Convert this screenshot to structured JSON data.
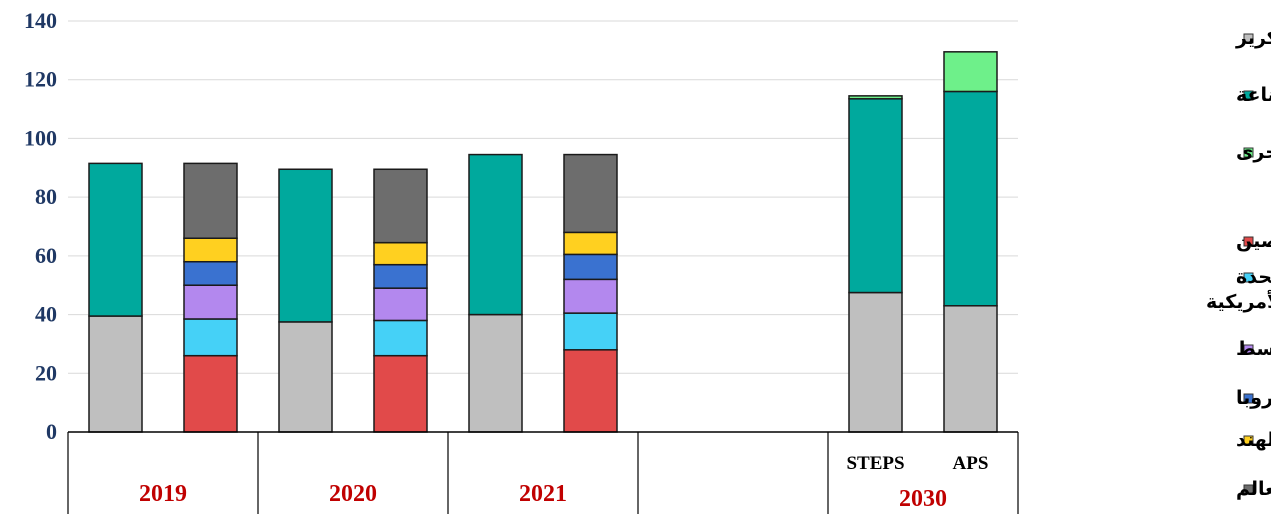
{
  "chart_data": {
    "type": "bar",
    "stacked": true,
    "ylim": [
      0,
      140
    ],
    "yticks": [
      0,
      20,
      40,
      60,
      80,
      100,
      120,
      140
    ],
    "grid": true,
    "legend_position": "right",
    "groups": [
      {
        "label": "2019",
        "bars": [
          {
            "sub_label": "",
            "segments": [
              {
                "series": "refining",
                "value": 39.5
              },
              {
                "series": "industry",
                "value": 52.0
              }
            ]
          },
          {
            "sub_label": "",
            "segments": [
              {
                "series": "china",
                "value": 26.0
              },
              {
                "series": "usa",
                "value": 12.5
              },
              {
                "series": "middle_east",
                "value": 11.5
              },
              {
                "series": "europe",
                "value": 8.0
              },
              {
                "series": "india",
                "value": 8.0
              },
              {
                "series": "rest_world",
                "value": 25.5
              }
            ]
          }
        ]
      },
      {
        "label": "2020",
        "bars": [
          {
            "sub_label": "",
            "segments": [
              {
                "series": "refining",
                "value": 37.5
              },
              {
                "series": "industry",
                "value": 52.0
              }
            ]
          },
          {
            "sub_label": "",
            "segments": [
              {
                "series": "china",
                "value": 26.0
              },
              {
                "series": "usa",
                "value": 12.0
              },
              {
                "series": "middle_east",
                "value": 11.0
              },
              {
                "series": "europe",
                "value": 8.0
              },
              {
                "series": "india",
                "value": 7.5
              },
              {
                "series": "rest_world",
                "value": 25.0
              }
            ]
          }
        ]
      },
      {
        "label": "2021",
        "bars": [
          {
            "sub_label": "",
            "segments": [
              {
                "series": "refining",
                "value": 40.0
              },
              {
                "series": "industry",
                "value": 54.5
              }
            ]
          },
          {
            "sub_label": "",
            "segments": [
              {
                "series": "china",
                "value": 28.0
              },
              {
                "series": "usa",
                "value": 12.5
              },
              {
                "series": "middle_east",
                "value": 11.5
              },
              {
                "series": "europe",
                "value": 8.5
              },
              {
                "series": "india",
                "value": 7.5
              },
              {
                "series": "rest_world",
                "value": 26.5
              }
            ]
          }
        ]
      },
      {
        "label": "",
        "bars": []
      },
      {
        "label": "2030",
        "bars": [
          {
            "sub_label": "STEPS",
            "segments": [
              {
                "series": "refining",
                "value": 47.5
              },
              {
                "series": "industry",
                "value": 66.0
              },
              {
                "series": "other_sectors",
                "value": 1.0
              }
            ]
          },
          {
            "sub_label": "APS",
            "segments": [
              {
                "series": "refining",
                "value": 43.0
              },
              {
                "series": "industry",
                "value": 73.0
              },
              {
                "series": "other_sectors",
                "value": 13.5
              }
            ]
          }
        ]
      }
    ],
    "series": [
      {
        "key": "refining",
        "name": "التكرير",
        "color": "#bfbfbf"
      },
      {
        "key": "industry",
        "name": "الصناعة",
        "color": "#00a99d"
      },
      {
        "key": "other_sectors",
        "name": "قطاعات أخرى",
        "color": "#6ef08a"
      },
      {
        "key": "china",
        "name": "الصين",
        "color": "#e14a4a"
      },
      {
        "key": "usa",
        "name": "الولايات المتحدة الأمريكية",
        "color": "#45d1f7"
      },
      {
        "key": "middle_east",
        "name": "الشرق الأوسط",
        "color": "#b388ee"
      },
      {
        "key": "europe",
        "name": "أوروبا",
        "color": "#3a72d0"
      },
      {
        "key": "india",
        "name": "الهند",
        "color": "#ffd020"
      },
      {
        "key": "rest_world",
        "name": "باقي دول العالم",
        "color": "#6d6d6d"
      }
    ]
  }
}
